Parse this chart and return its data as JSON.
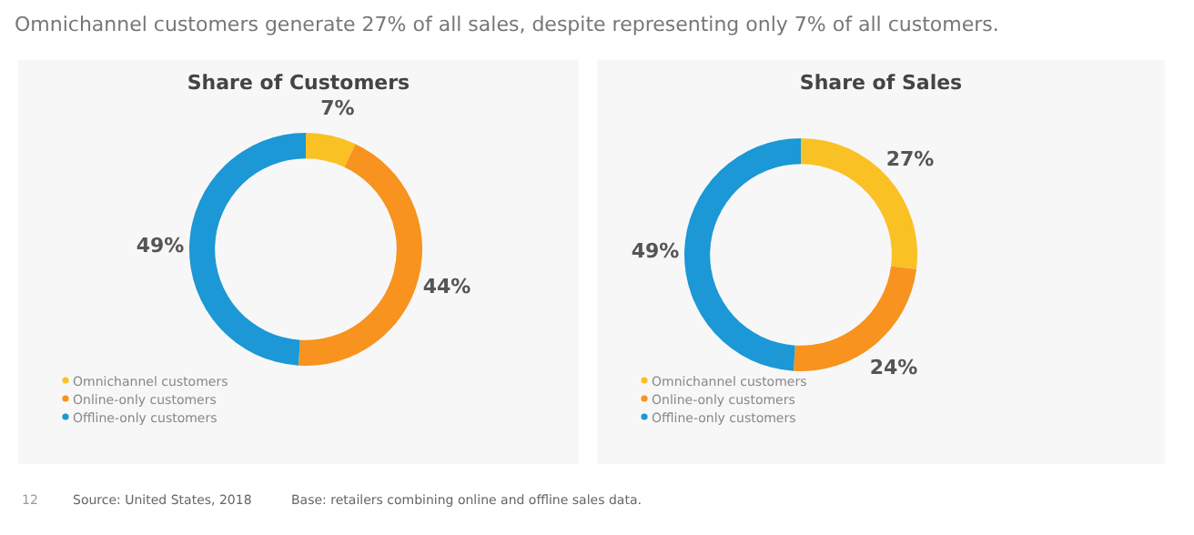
{
  "chart_data": [
    {
      "type": "donut",
      "title": "Share of Customers",
      "categories": [
        "Omnichannel customers",
        "Online-only customers",
        "Offline-only customers"
      ],
      "values": [
        7,
        44,
        49
      ],
      "value_labels": [
        "7%",
        "44%",
        "49%"
      ],
      "colors": [
        "#f9c124",
        "#f7931e",
        "#1b98d5"
      ],
      "legend": "bottom left",
      "annotations": [
        "Omnichannel customers generate 27% of all sales, despite representing only 7% of all customers.",
        "12",
        "Source: United States, 2018"
      ]
    },
    {
      "type": "donut",
      "title": "Share of Sales",
      "categories": [
        "Omnichannel customers",
        "Online-only customers",
        "Offline-only customers"
      ],
      "values": [
        27,
        24,
        49
      ],
      "value_labels": [
        "27%",
        "24%",
        "49%"
      ],
      "colors": [
        "#f9c124",
        "#f7931e",
        "#1b98d5"
      ],
      "legend": "bottom left",
      "annotations": [
        "Base: retailers combining online and offline sales data."
      ]
    }
  ]
}
